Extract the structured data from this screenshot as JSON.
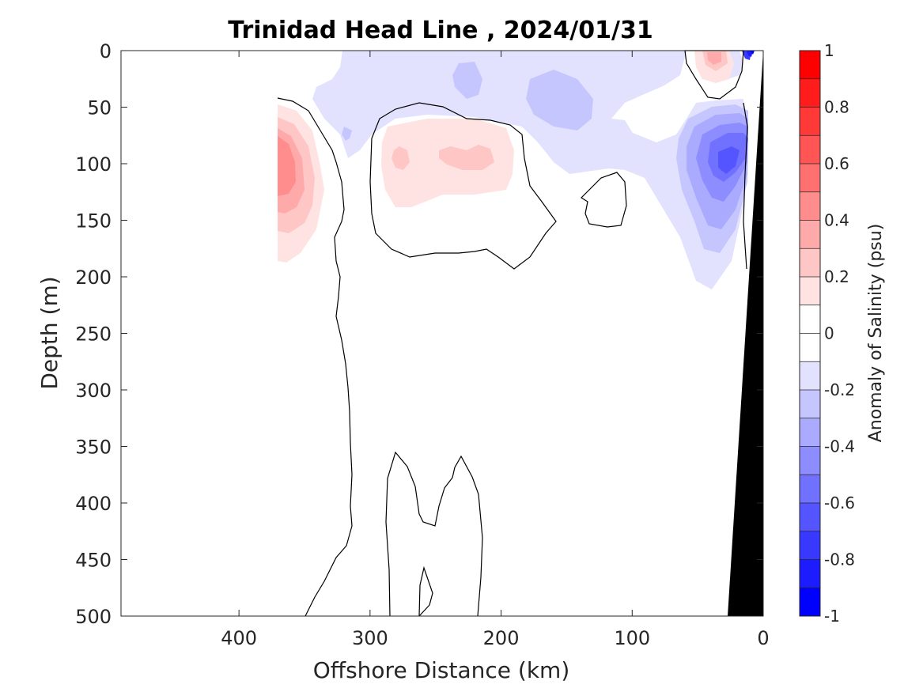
{
  "chart_data": {
    "type": "heatmap",
    "subtype": "filled-contour section",
    "title": "Trinidad Head Line , 2024/01/31",
    "xlabel": "Offshore Distance (km)",
    "ylabel": "Depth (m)",
    "xlim": [
      490,
      0
    ],
    "ylim": [
      0,
      500
    ],
    "x_reversed": true,
    "y_reversed": true,
    "xticks": [
      400,
      300,
      200,
      100,
      0
    ],
    "yticks": [
      0,
      50,
      100,
      150,
      200,
      250,
      300,
      350,
      400,
      450,
      500
    ],
    "colorbar": {
      "label": "Anomaly of Salinity (psu)",
      "range": [
        -1,
        1
      ],
      "levels": [
        -1,
        -0.9,
        -0.8,
        -0.7,
        -0.6,
        -0.5,
        -0.4,
        -0.3,
        -0.2,
        -0.1,
        0,
        0.1,
        0.2,
        0.3,
        0.4,
        0.5,
        0.6,
        0.7,
        0.8,
        0.9,
        1
      ],
      "ticks": [
        1,
        0.8,
        0.6,
        0.4,
        0.2,
        0,
        -0.2,
        -0.4,
        -0.6,
        -0.8,
        -1
      ],
      "colors_low_to_high": [
        "#0000ff",
        "#1c1cff",
        "#3838ff",
        "#5555ff",
        "#7171ff",
        "#8d8dff",
        "#aaaaff",
        "#c6c6ff",
        "#e2e2ff",
        "#ffffff",
        "#ffffff",
        "#ffe2e2",
        "#ffc6c6",
        "#ffaaaa",
        "#ff8d8d",
        "#ff7171",
        "#ff5555",
        "#ff3838",
        "#ff1c1c",
        "#ff0000"
      ]
    },
    "features": [
      {
        "name": "Offshore positive salinity anomaly",
        "center_km": 360,
        "center_depth_m": 100,
        "peak_anomaly": 0.4
      },
      {
        "name": "Mid-shelf positive salinity anomaly",
        "center_km": 250,
        "center_depth_m": 95,
        "peak_anomaly": 0.3
      },
      {
        "name": "Surface positive anomaly near coast",
        "center_km": 35,
        "center_depth_m": 5,
        "peak_anomaly": 0.3
      },
      {
        "name": "Coastal negative salinity anomaly",
        "center_km": 40,
        "center_depth_m": 100,
        "peak_anomaly": -0.5
      },
      {
        "name": "Upper-layer weak negative anomaly",
        "x_range_km": [
          0,
          400
        ],
        "depth_range_m": [
          0,
          150
        ],
        "peak_anomaly": -0.3
      },
      {
        "name": "Nearshore surface strong negative anomaly",
        "center_km": 10,
        "center_depth_m": 2,
        "peak_anomaly": -1
      }
    ],
    "bathymetry": {
      "color": "#000000",
      "depth_at_coast_m": 0,
      "reaches_500m_at_km": 29
    },
    "zero_contour": "black line"
  }
}
